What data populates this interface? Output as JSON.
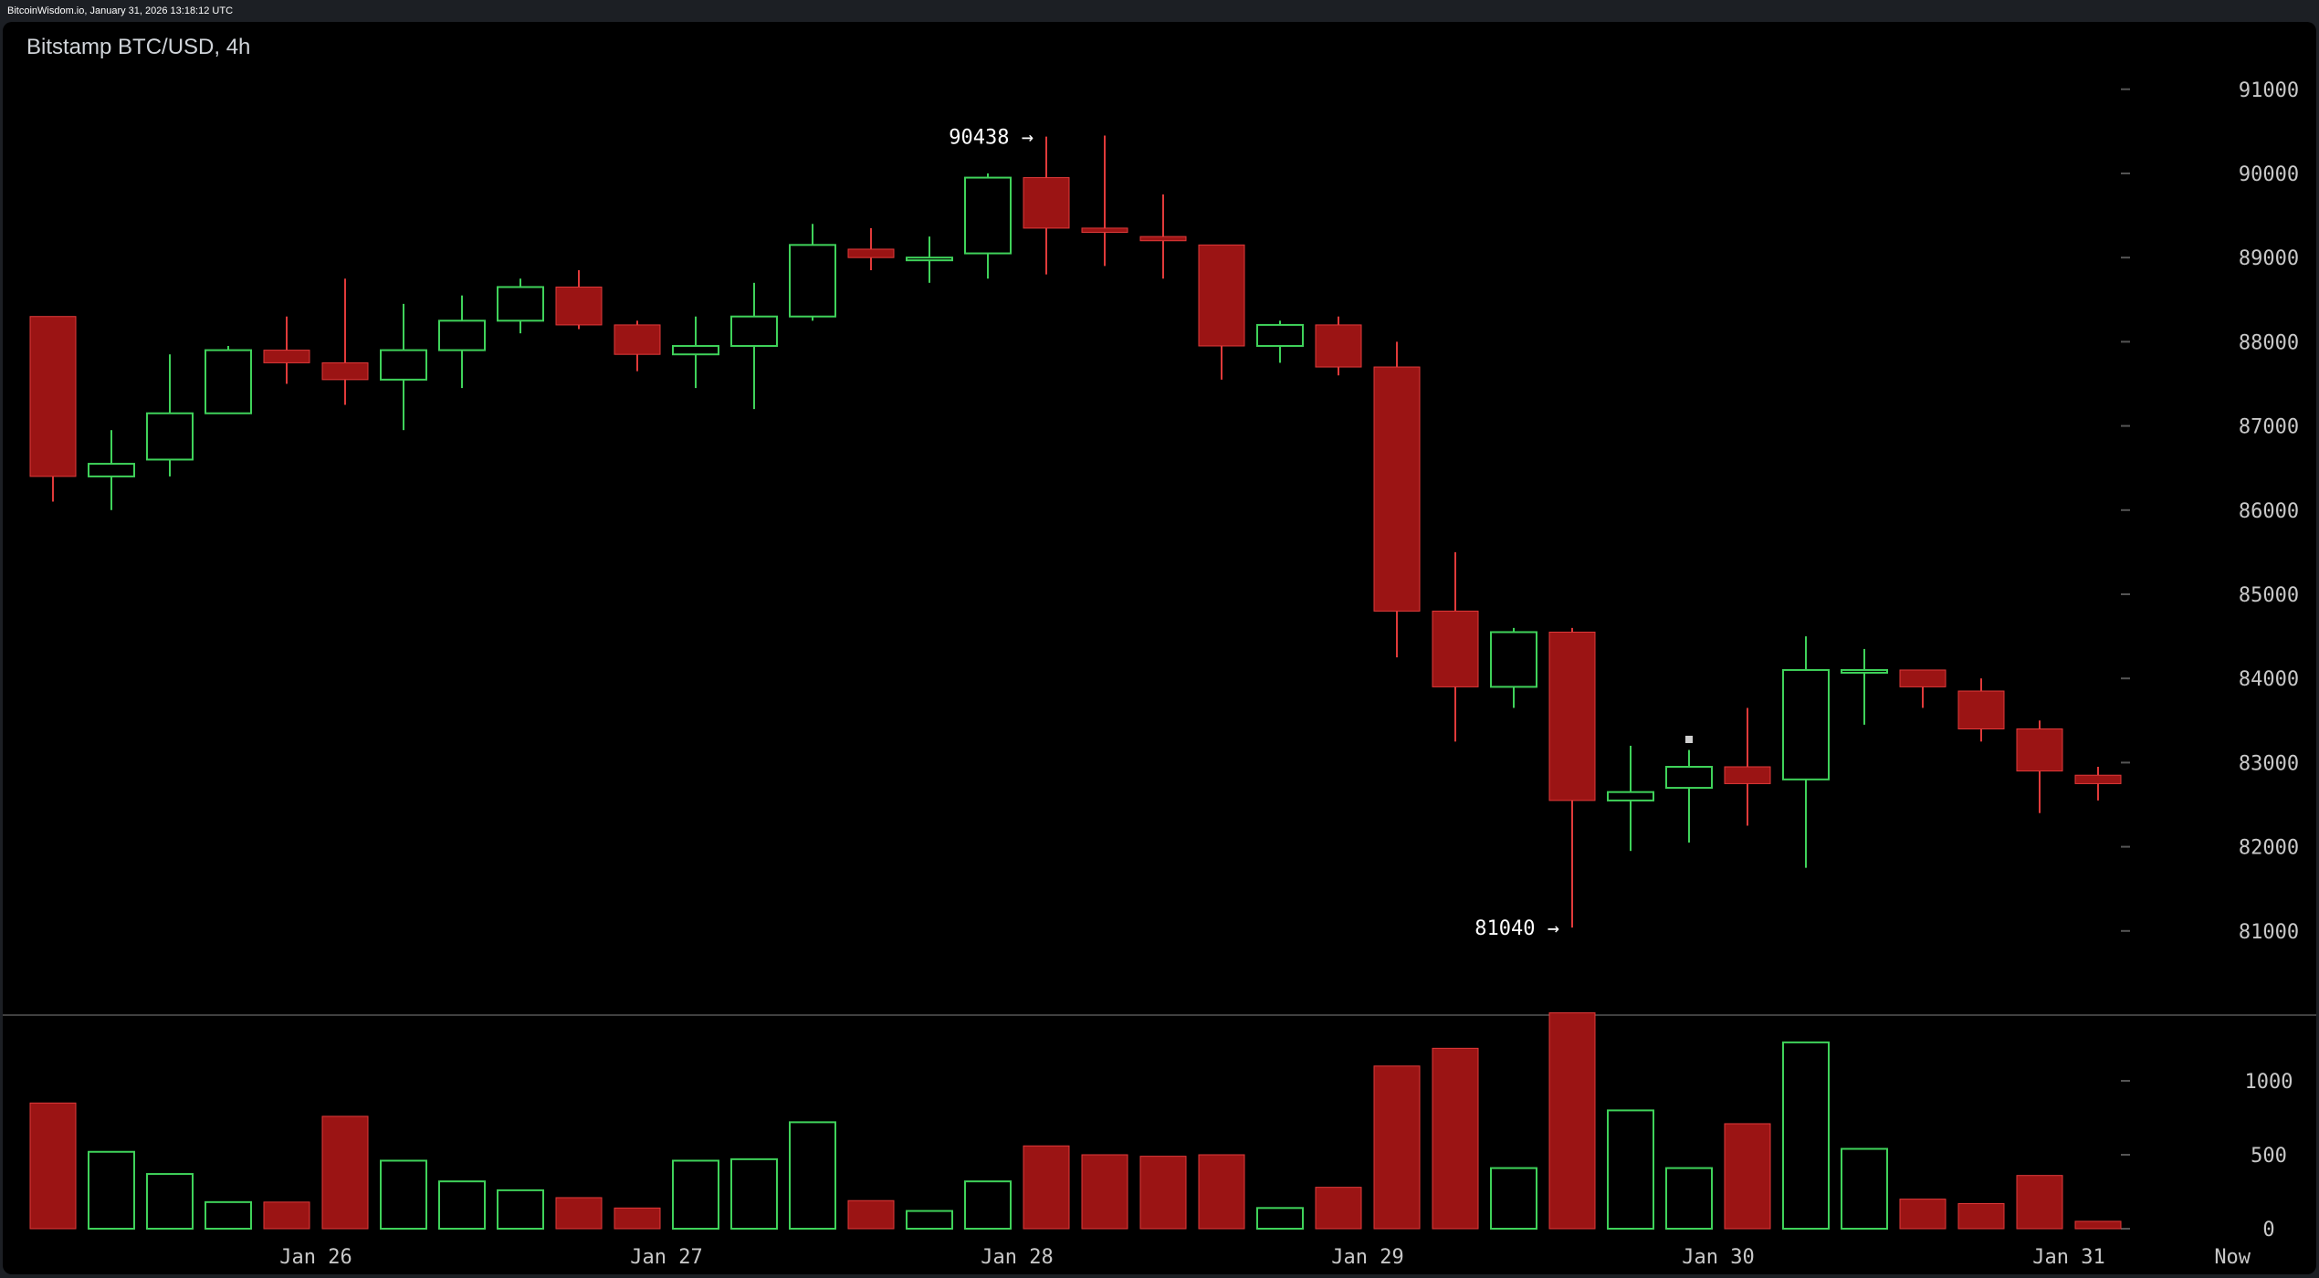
{
  "header": {
    "source_text": "BitcoinWisdom.io, January 31, 2026 13:18:12 UTC"
  },
  "chart_data": {
    "type": "candlestick",
    "title": "Bitstamp BTC/USD, 4h",
    "ylim": [
      80000,
      91800
    ],
    "y_ticks": [
      81000,
      82000,
      83000,
      84000,
      85000,
      86000,
      87000,
      88000,
      89000,
      90000,
      91000
    ],
    "volume_ylim": [
      0,
      1500
    ],
    "volume_ticks": [
      0,
      500,
      1000
    ],
    "x_labels": [
      "Jan 26",
      "Jan 27",
      "Jan 28",
      "Jan 29",
      "Jan 30",
      "Jan 31",
      "Now"
    ],
    "x_label_positions_candle_index": [
      4.5,
      10.5,
      16.5,
      22.5,
      28.5,
      34.5,
      37.3
    ],
    "colors": {
      "up": "#3fd25a",
      "down": "#9b1414",
      "down_edge": "#e03a3a",
      "background": "#000000",
      "grid_tick": "#555555"
    },
    "annotations": [
      {
        "text": "90438 →",
        "candle_index": 17,
        "value": 90438
      },
      {
        "text": "81040 →",
        "candle_index": 26,
        "value": 81040
      }
    ],
    "candles": [
      {
        "open": 88300,
        "high": 88300,
        "low": 86100,
        "close": 86400,
        "volume": 850
      },
      {
        "open": 86400,
        "high": 86950,
        "low": 86000,
        "close": 86550,
        "volume": 520
      },
      {
        "open": 86600,
        "high": 87850,
        "low": 86400,
        "close": 87150,
        "volume": 370
      },
      {
        "open": 87150,
        "high": 87950,
        "low": 87150,
        "close": 87900,
        "volume": 180
      },
      {
        "open": 87900,
        "high": 88300,
        "low": 87500,
        "close": 87750,
        "volume": 180
      },
      {
        "open": 87750,
        "high": 88750,
        "low": 87250,
        "close": 87550,
        "volume": 760
      },
      {
        "open": 87550,
        "high": 88450,
        "low": 86950,
        "close": 87900,
        "volume": 460
      },
      {
        "open": 87900,
        "high": 88550,
        "low": 87450,
        "close": 88250,
        "volume": 320
      },
      {
        "open": 88250,
        "high": 88750,
        "low": 88100,
        "close": 88650,
        "volume": 260
      },
      {
        "open": 88650,
        "high": 88850,
        "low": 88150,
        "close": 88200,
        "volume": 210
      },
      {
        "open": 88200,
        "high": 88250,
        "low": 87650,
        "close": 87850,
        "volume": 140
      },
      {
        "open": 87850,
        "high": 88300,
        "low": 87450,
        "close": 87950,
        "volume": 460
      },
      {
        "open": 87950,
        "high": 88700,
        "low": 87200,
        "close": 88300,
        "volume": 470
      },
      {
        "open": 88300,
        "high": 89400,
        "low": 88250,
        "close": 89150,
        "volume": 720
      },
      {
        "open": 89100,
        "high": 89350,
        "low": 88850,
        "close": 89000,
        "volume": 190
      },
      {
        "open": 89000,
        "high": 89250,
        "low": 88700,
        "close": 89000,
        "volume": 120
      },
      {
        "open": 89050,
        "high": 90000,
        "low": 88750,
        "close": 89950,
        "volume": 320
      },
      {
        "open": 89950,
        "high": 90438,
        "low": 88800,
        "close": 89350,
        "volume": 560
      },
      {
        "open": 89350,
        "high": 90450,
        "low": 88900,
        "close": 89300,
        "volume": 500
      },
      {
        "open": 89250,
        "high": 89750,
        "low": 88750,
        "close": 89200,
        "volume": 490
      },
      {
        "open": 89150,
        "high": 89150,
        "low": 87550,
        "close": 87950,
        "volume": 500
      },
      {
        "open": 87950,
        "high": 88250,
        "low": 87750,
        "close": 88200,
        "volume": 140
      },
      {
        "open": 88200,
        "high": 88300,
        "low": 87600,
        "close": 87700,
        "volume": 280
      },
      {
        "open": 87700,
        "high": 88000,
        "low": 84250,
        "close": 84800,
        "volume": 1100
      },
      {
        "open": 84800,
        "high": 85500,
        "low": 83250,
        "close": 83900,
        "volume": 1220
      },
      {
        "open": 83900,
        "high": 84600,
        "low": 83650,
        "close": 84550,
        "volume": 410
      },
      {
        "open": 84550,
        "high": 84600,
        "low": 81040,
        "close": 82550,
        "volume": 1460
      },
      {
        "open": 82550,
        "high": 83200,
        "low": 81950,
        "close": 82650,
        "volume": 800
      },
      {
        "open": 82700,
        "high": 83150,
        "low": 82050,
        "close": 82950,
        "volume": 410
      },
      {
        "open": 82950,
        "high": 83650,
        "low": 82250,
        "close": 82750,
        "volume": 710
      },
      {
        "open": 82800,
        "high": 84500,
        "low": 81750,
        "close": 84100,
        "volume": 1260
      },
      {
        "open": 84100,
        "high": 84350,
        "low": 83450,
        "close": 84100,
        "volume": 540
      },
      {
        "open": 84100,
        "high": 84100,
        "low": 83650,
        "close": 83900,
        "volume": 200
      },
      {
        "open": 83850,
        "high": 84000,
        "low": 83250,
        "close": 83400,
        "volume": 170
      },
      {
        "open": 83400,
        "high": 83500,
        "low": 82400,
        "close": 82900,
        "volume": 360
      },
      {
        "open": 82850,
        "high": 82950,
        "low": 82550,
        "close": 82750,
        "volume": 50
      }
    ]
  }
}
